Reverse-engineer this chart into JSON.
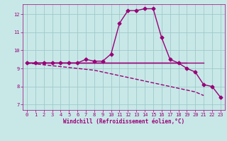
{
  "background_color": "#c8e8e8",
  "grid_color": "#a0c8c8",
  "line_color": "#990077",
  "xlabel": "Windchill (Refroidissement éolien,°C)",
  "xlim": [
    -0.5,
    23.5
  ],
  "ylim": [
    6.7,
    12.55
  ],
  "xticks": [
    0,
    1,
    2,
    3,
    4,
    5,
    6,
    7,
    8,
    9,
    10,
    11,
    12,
    13,
    14,
    15,
    16,
    17,
    18,
    19,
    20,
    21,
    22,
    23
  ],
  "yticks": [
    7,
    8,
    9,
    10,
    11,
    12
  ],
  "hours": [
    0,
    1,
    2,
    3,
    4,
    5,
    6,
    7,
    8,
    9,
    10,
    11,
    12,
    13,
    14,
    15,
    16,
    17,
    18,
    19,
    20,
    21,
    22,
    23
  ],
  "line_main": [
    9.3,
    9.3,
    9.3,
    9.3,
    9.3,
    9.3,
    9.3,
    9.5,
    9.4,
    9.4,
    9.8,
    11.5,
    12.2,
    12.2,
    12.3,
    12.3,
    10.7,
    9.5,
    9.3,
    9.0,
    8.8,
    8.1,
    8.0,
    7.4
  ],
  "line_flat1": [
    9.3,
    9.3,
    9.3,
    9.3,
    9.3,
    9.3,
    9.3,
    9.3,
    9.3,
    9.3,
    9.3,
    9.3,
    9.3,
    9.3,
    9.3,
    9.3,
    9.3,
    9.3,
    9.3,
    9.3,
    9.3,
    9.3,
    null,
    null
  ],
  "line_flat2_x": [
    0,
    1,
    2,
    3,
    4,
    5,
    6,
    7,
    8,
    9,
    10,
    11,
    12,
    13,
    14,
    15,
    16,
    17,
    18,
    19
  ],
  "line_flat2_y": [
    9.3,
    9.3,
    9.3,
    9.3,
    9.3,
    9.3,
    9.3,
    9.3,
    9.3,
    9.3,
    9.3,
    9.3,
    9.3,
    9.3,
    9.3,
    9.3,
    9.3,
    9.3,
    9.3,
    9.3
  ],
  "line_descent": [
    9.3,
    9.25,
    9.2,
    9.15,
    9.1,
    9.05,
    9.0,
    8.95,
    8.9,
    8.8,
    8.7,
    8.6,
    8.5,
    8.4,
    8.3,
    8.2,
    8.1,
    8.0,
    7.9,
    7.8,
    7.7,
    7.5,
    null,
    null
  ]
}
